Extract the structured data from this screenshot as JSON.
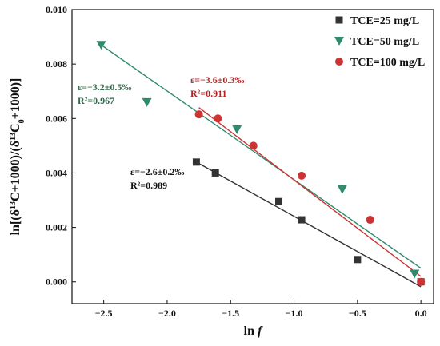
{
  "chart_data": {
    "type": "scatter",
    "xlabel_main": "ln",
    "xlabel_var": "f",
    "ylabel": {
      "parts": [
        {
          "t": "ln[(δ",
          "sup": false,
          "sub": false
        },
        {
          "t": "13",
          "sup": true,
          "sub": false
        },
        {
          "t": "C+1000)/(δ",
          "sup": false,
          "sub": false
        },
        {
          "t": "13",
          "sup": true,
          "sub": false
        },
        {
          "t": "C",
          "sup": false,
          "sub": false
        },
        {
          "t": "0",
          "sup": false,
          "sub": true
        },
        {
          "t": "+1000)]",
          "sup": false,
          "sub": false
        }
      ]
    },
    "xlim": [
      -2.75,
      0.1
    ],
    "ylim": [
      -0.0008,
      0.01
    ],
    "xticks": [
      -2.5,
      -2.0,
      -1.5,
      -1.0,
      -0.5,
      0.0
    ],
    "xtick_labels": [
      "−2.5",
      "−2.0",
      "−1.5",
      "−1.0",
      "−0.5",
      "0.0"
    ],
    "yticks": [
      0.0,
      0.002,
      0.004,
      0.006,
      0.008,
      0.01
    ],
    "ytick_labels": [
      "0.000",
      "0.002",
      "0.004",
      "0.006",
      "0.008",
      "0.010"
    ],
    "series": [
      {
        "name": "TCE=25 mg/L",
        "marker": "square",
        "color": "#333333",
        "x": [
          -1.77,
          -1.62,
          -1.12,
          -0.94,
          -0.5,
          0.0
        ],
        "y": [
          0.0044,
          0.004,
          0.00295,
          0.00228,
          0.00082,
          0.0
        ],
        "fit": {
          "x": [
            -1.77,
            0.0
          ],
          "y": [
            0.0044,
            -0.00018
          ]
        },
        "annotation": {
          "line1": "ε=−2.6±0.2‰",
          "line2": "R²=0.989",
          "color": "#111111"
        }
      },
      {
        "name": "TCE=50 mg/L",
        "marker": "triangle-down",
        "color": "#2e8b6e",
        "x": [
          -2.52,
          -2.16,
          -1.45,
          -0.62,
          -0.05
        ],
        "y": [
          0.0087,
          0.0066,
          0.0056,
          0.0034,
          0.0003
        ],
        "fit": {
          "x": [
            -2.52,
            0.0
          ],
          "y": [
            0.0087,
            0.0005
          ]
        },
        "annotation": {
          "line1": "ε=−3.2±0.5‰",
          "line2": "R²=0.967",
          "color": "#2e6b4a"
        }
      },
      {
        "name": "TCE=100 mg/L",
        "marker": "circle",
        "color": "#cc3333",
        "x": [
          -1.75,
          -1.6,
          -1.32,
          -0.94,
          -0.4,
          0.0
        ],
        "y": [
          0.00615,
          0.006,
          0.005,
          0.0039,
          0.00228,
          0.0
        ],
        "fit": {
          "x": [
            -1.75,
            0.0
          ],
          "y": [
            0.0064,
            0.0002
          ]
        },
        "annotation": {
          "line1": "ε=−3.6±0.3‰",
          "line2": "R²=0.911",
          "color": "#b22222"
        }
      }
    ]
  }
}
